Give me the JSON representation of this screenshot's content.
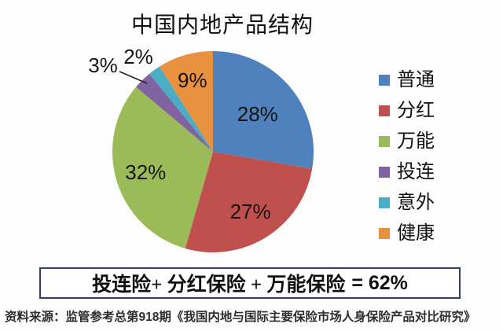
{
  "title": "中国内地产品结构",
  "chart_data": {
    "type": "pie",
    "title": "中国内地产品结构",
    "labels": [
      "普通",
      "分红",
      "万能",
      "投连",
      "意外",
      "健康"
    ],
    "values": [
      28,
      27,
      32,
      3,
      2,
      9
    ],
    "data_labels": [
      "28%",
      "27%",
      "32%",
      "3%",
      "2%",
      "9%"
    ],
    "colors": [
      "#4F81BD",
      "#C0504D",
      "#9BBB59",
      "#8064A2",
      "#4BACC6",
      "#E8913F"
    ],
    "label_color": "#141414",
    "legend_position": "right",
    "start_angle_deg": 0,
    "direction": "clockwise"
  },
  "summary_box": {
    "label": "投连险+ 分红保险 + 万能保险",
    "result": "= 62%",
    "border_color": "#383E6B"
  },
  "source_note": "资料来源：监管参考总第918期《我国内地与国际主要保险市场人身保险产品对比研究》"
}
